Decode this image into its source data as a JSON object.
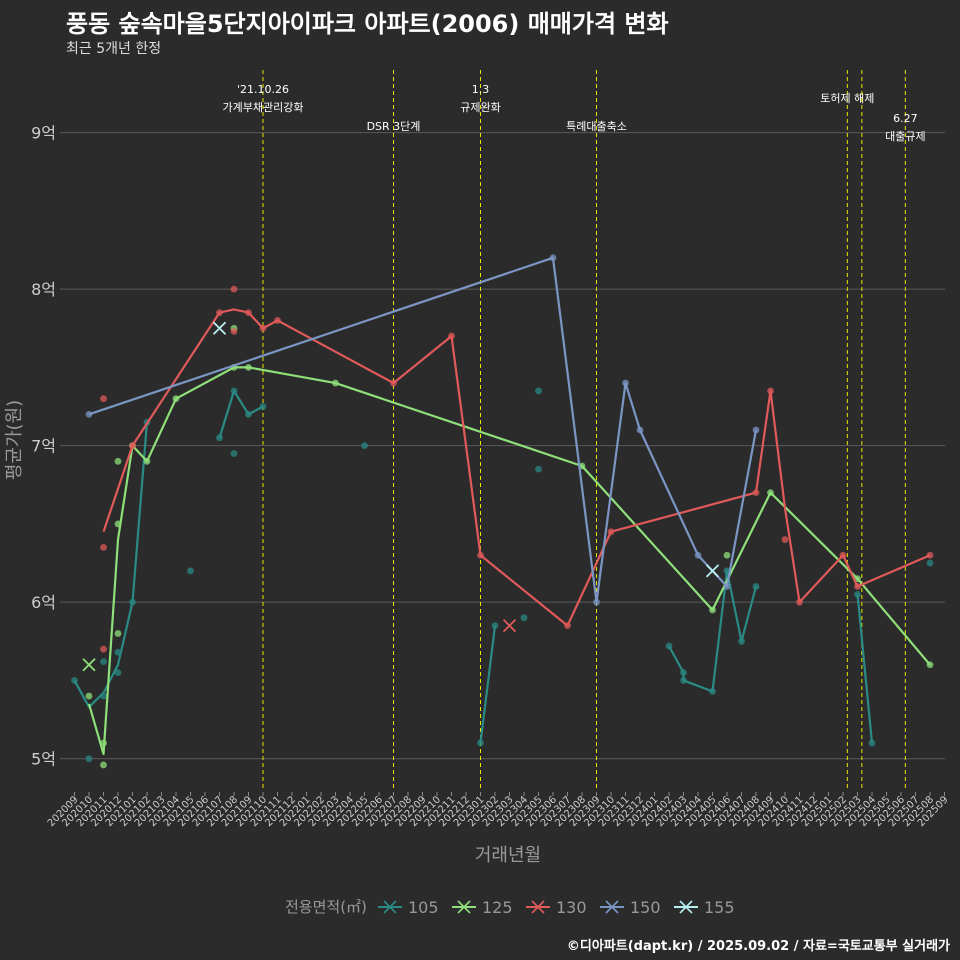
{
  "title": "풍동 숲속마을5단지아이파크 아파트(2006) 매매가격 변화",
  "subtitle": "최근 5개년 한정",
  "credit": "©디아파트(dapt.kr) / 2025.09.02 / 자료=국토교통부 실거래가",
  "colors": {
    "background": "#2b2b2b",
    "grid": "#5a5a5a",
    "event_line": "#e6e600",
    "axis_text": "#cccccc",
    "axis_title": "#999999"
  },
  "chart_data": {
    "type": "line",
    "title": "풍동 숲속마을5단지아이파크 아파트(2006) 매매가격 변화",
    "xlabel": "거래년월",
    "ylabel": "평균가(원)",
    "ylim": [
      4.8,
      9.4
    ],
    "yticks": [
      5,
      6,
      7,
      8,
      9
    ],
    "ytick_labels": [
      "5억",
      "6억",
      "7억",
      "8억",
      "9억"
    ],
    "grid": true,
    "legend_title": "전용면적(㎡)",
    "legend_position": "bottom",
    "x_categories": [
      "202009",
      "202010",
      "202011",
      "202012",
      "202101",
      "202102",
      "202103",
      "202104",
      "202105",
      "202106",
      "202107",
      "202108",
      "202109",
      "202110",
      "202111",
      "202112",
      "202201",
      "202202",
      "202203",
      "202204",
      "202205",
      "202206",
      "202207",
      "202208",
      "202209",
      "202210",
      "202211",
      "202212",
      "202301",
      "202302",
      "202303",
      "202304",
      "202305",
      "202306",
      "202307",
      "202308",
      "202309",
      "202310",
      "202311",
      "202312",
      "202401",
      "202402",
      "202403",
      "202404",
      "202405",
      "202406",
      "202407",
      "202408",
      "202409",
      "202410",
      "202411",
      "202412",
      "202501",
      "202502",
      "202503",
      "202504",
      "202505",
      "202506",
      "202507",
      "202508",
      "202509"
    ],
    "events": [
      {
        "x": 13,
        "lines": [
          "'21.10.26",
          "가계부채관리강화"
        ],
        "level": 0
      },
      {
        "x": 22,
        "lines": [
          "DSR 3단계"
        ],
        "level": 2
      },
      {
        "x": 28,
        "lines": [
          "1.3",
          "규제완화"
        ],
        "level": 0
      },
      {
        "x": 36,
        "lines": [
          "특례대출축소"
        ],
        "level": 2
      },
      {
        "x": 53.3,
        "lines": [
          "토허제 해제"
        ],
        "level": 1
      },
      {
        "x": 54.3,
        "lines": [],
        "level": 0
      },
      {
        "x": 57.3,
        "lines": [
          "6.27",
          "대출규제"
        ],
        "level": 3
      }
    ],
    "series": [
      {
        "name": "105",
        "color": "#2a8a84",
        "line": [
          [
            0,
            5.5
          ],
          [
            1,
            5.33
          ],
          [
            2,
            5.42
          ],
          [
            3,
            5.6
          ],
          [
            4,
            6.0
          ],
          [
            5,
            7.15
          ]
        ],
        "line2": [
          [
            10,
            7.05
          ],
          [
            11,
            7.35
          ],
          [
            12,
            7.2
          ],
          [
            13,
            7.25
          ]
        ],
        "line3": [
          [
            28,
            5.1
          ],
          [
            29,
            5.85
          ]
        ],
        "line4": [
          [
            41,
            5.72
          ],
          [
            42,
            5.55
          ],
          [
            42,
            5.5
          ],
          [
            44,
            5.43
          ],
          [
            45,
            6.2
          ],
          [
            46,
            5.75
          ],
          [
            47,
            6.1
          ]
        ],
        "line5": [
          [
            54,
            6.05
          ],
          [
            55,
            5.1
          ]
        ],
        "points": [
          [
            0,
            5.5
          ],
          [
            1,
            5.0
          ],
          [
            2,
            5.4
          ],
          [
            2,
            5.62
          ],
          [
            3,
            5.55
          ],
          [
            3,
            5.68
          ],
          [
            4,
            6.0
          ],
          [
            5,
            7.15
          ],
          [
            8,
            6.2
          ],
          [
            10,
            7.05
          ],
          [
            11,
            6.95
          ],
          [
            11,
            7.35
          ],
          [
            12,
            7.2
          ],
          [
            13,
            7.25
          ],
          [
            20,
            7.0
          ],
          [
            28,
            5.1
          ],
          [
            29,
            5.85
          ],
          [
            31,
            5.9
          ],
          [
            32,
            7.35
          ],
          [
            32,
            6.85
          ],
          [
            41,
            5.72
          ],
          [
            42,
            5.55
          ],
          [
            42,
            5.5
          ],
          [
            44,
            5.43
          ],
          [
            45,
            6.2
          ],
          [
            46,
            5.75
          ],
          [
            47,
            6.1
          ],
          [
            54,
            6.05
          ],
          [
            55,
            5.1
          ],
          [
            59,
            6.25
          ]
        ],
        "marks": []
      },
      {
        "name": "125",
        "color": "#8fe07a",
        "line": [
          [
            1,
            5.35
          ],
          [
            2,
            5.03
          ],
          [
            3,
            6.4
          ],
          [
            4,
            7.0
          ],
          [
            5,
            6.9
          ],
          [
            7,
            7.3
          ],
          [
            11,
            7.5
          ],
          [
            12,
            7.5
          ],
          [
            18,
            7.4
          ],
          [
            35,
            6.87
          ],
          [
            44,
            5.95
          ],
          [
            48,
            6.7
          ],
          [
            54,
            6.15
          ],
          [
            59,
            5.6
          ]
        ],
        "points": [
          [
            1,
            5.4
          ],
          [
            2,
            5.1
          ],
          [
            2,
            4.96
          ],
          [
            3,
            5.8
          ],
          [
            3,
            6.5
          ],
          [
            3,
            6.9
          ],
          [
            4,
            7.0
          ],
          [
            5,
            6.9
          ],
          [
            7,
            7.3
          ],
          [
            11,
            7.5
          ],
          [
            11,
            7.75
          ],
          [
            12,
            7.5
          ],
          [
            18,
            7.4
          ],
          [
            35,
            6.87
          ],
          [
            44,
            5.95
          ],
          [
            45,
            6.3
          ],
          [
            48,
            6.7
          ],
          [
            54,
            6.15
          ],
          [
            59,
            5.6
          ]
        ],
        "marks": [
          [
            1,
            5.6
          ]
        ]
      },
      {
        "name": "130",
        "color": "#e05a5a",
        "line": [
          [
            2,
            6.45
          ],
          [
            4,
            7.0
          ],
          [
            10,
            7.85
          ],
          [
            11,
            7.87
          ],
          [
            12,
            7.85
          ],
          [
            13,
            7.75
          ],
          [
            14,
            7.8
          ],
          [
            22,
            7.4
          ],
          [
            26,
            7.7
          ],
          [
            28,
            6.3
          ],
          [
            34,
            5.85
          ],
          [
            37,
            6.45
          ],
          [
            47,
            6.7
          ],
          [
            48,
            7.35
          ],
          [
            49,
            6.6
          ],
          [
            50,
            6.0
          ],
          [
            53,
            6.3
          ],
          [
            54,
            6.1
          ],
          [
            59,
            6.3
          ]
        ],
        "points": [
          [
            2,
            7.3
          ],
          [
            2,
            6.35
          ],
          [
            2,
            5.7
          ],
          [
            4,
            7.0
          ],
          [
            10,
            7.85
          ],
          [
            11,
            8.0
          ],
          [
            11,
            7.73
          ],
          [
            12,
            7.85
          ],
          [
            13,
            7.75
          ],
          [
            14,
            7.8
          ],
          [
            22,
            7.4
          ],
          [
            26,
            7.7
          ],
          [
            28,
            6.3
          ],
          [
            34,
            5.85
          ],
          [
            37,
            6.45
          ],
          [
            47,
            6.7
          ],
          [
            48,
            7.35
          ],
          [
            49,
            6.4
          ],
          [
            50,
            6.0
          ],
          [
            53,
            6.3
          ],
          [
            54,
            6.1
          ],
          [
            59,
            6.3
          ]
        ],
        "marks": [
          [
            30,
            5.85
          ]
        ]
      },
      {
        "name": "150",
        "color": "#7b96c4",
        "line": [
          [
            1,
            7.2
          ],
          [
            33,
            8.2
          ],
          [
            36,
            6.0
          ],
          [
            38,
            7.4
          ],
          [
            39,
            7.1
          ],
          [
            43,
            6.3
          ],
          [
            45,
            6.1
          ],
          [
            47,
            7.1
          ]
        ],
        "points": [
          [
            1,
            7.2
          ],
          [
            33,
            8.2
          ],
          [
            36,
            6.0
          ],
          [
            38,
            7.4
          ],
          [
            39,
            7.1
          ],
          [
            43,
            6.3
          ],
          [
            45,
            6.1
          ],
          [
            47,
            7.1
          ]
        ],
        "marks": []
      },
      {
        "name": "155",
        "color": "#b8eef0",
        "line": [],
        "points": [],
        "marks": [
          [
            10,
            7.75
          ],
          [
            44,
            6.2
          ]
        ]
      }
    ]
  }
}
